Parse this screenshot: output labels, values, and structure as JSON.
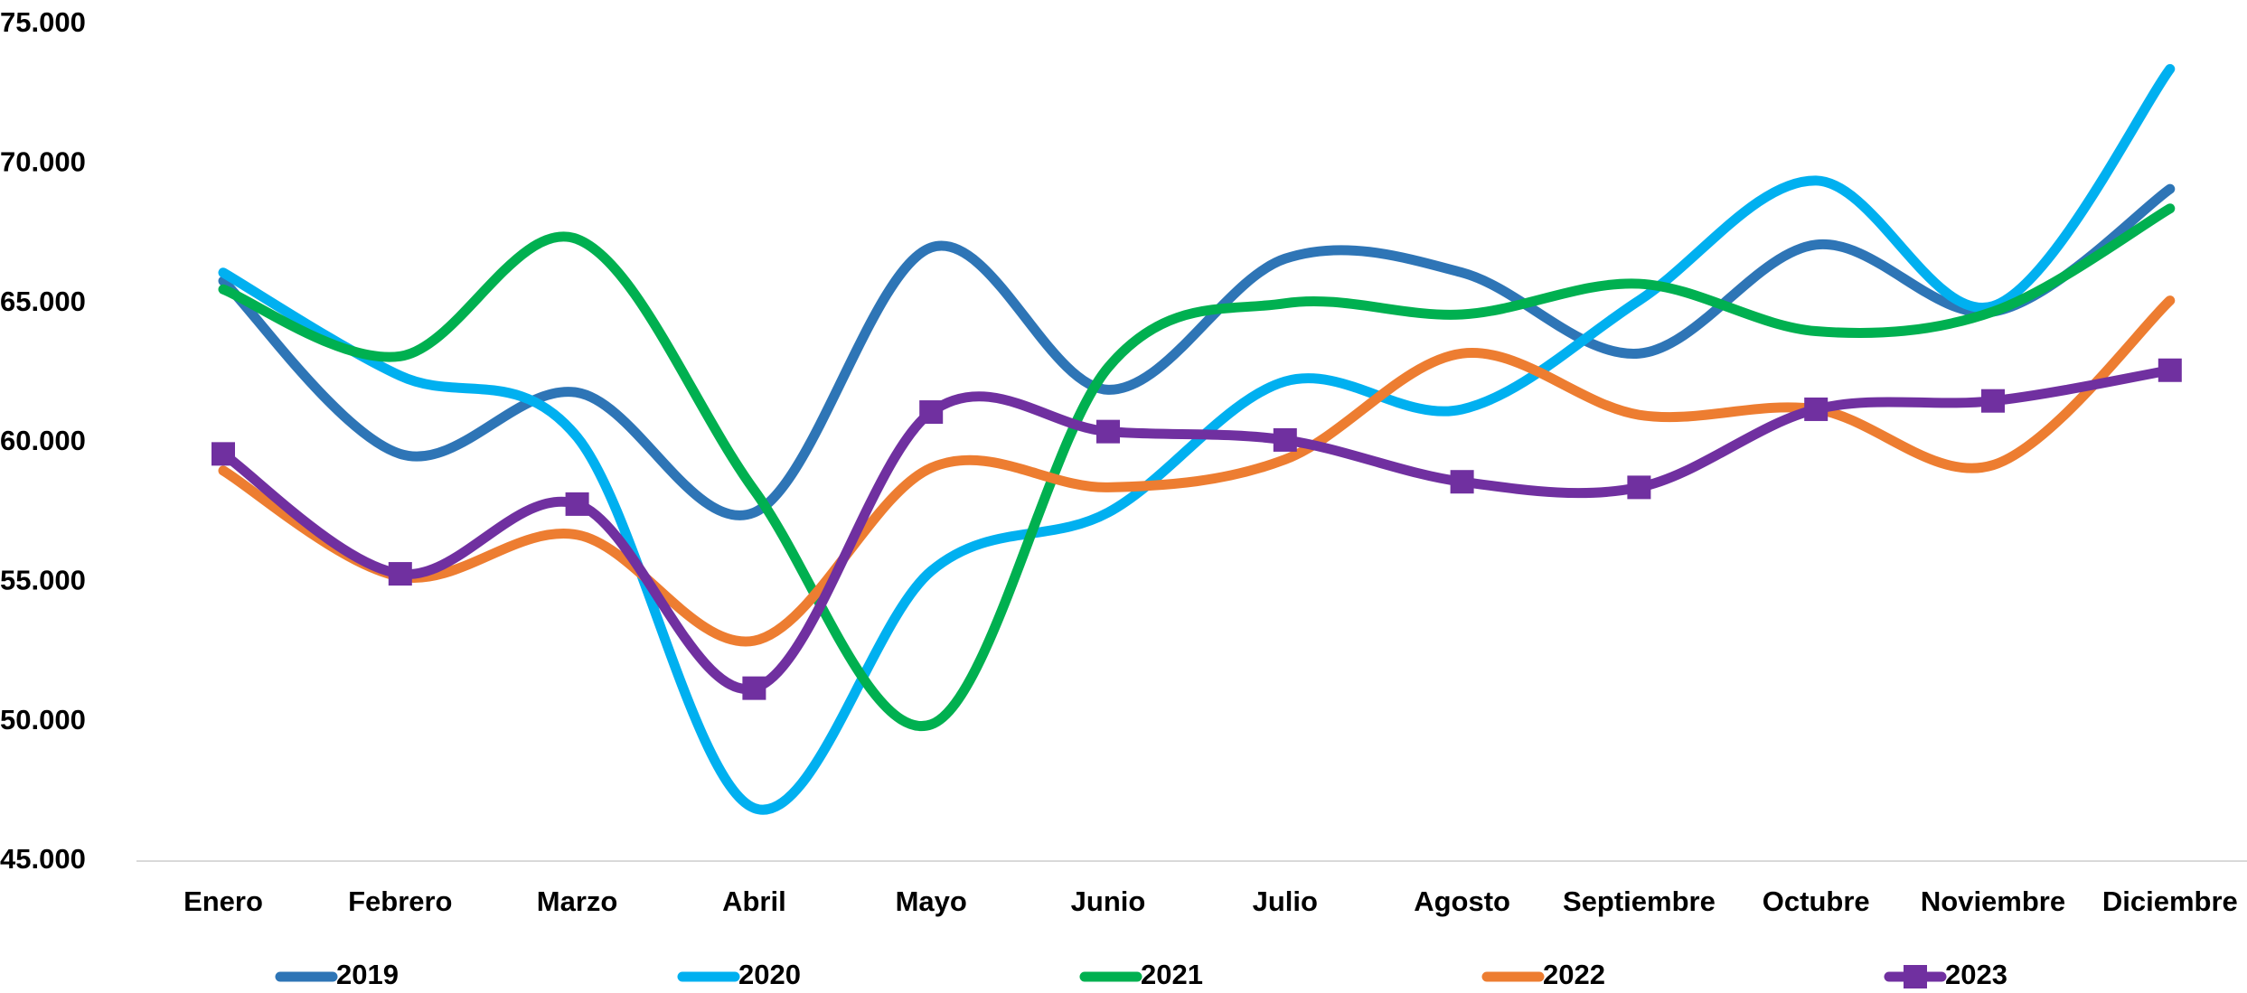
{
  "chart_data": {
    "type": "line",
    "smooth": true,
    "legend": "bottom",
    "categories": [
      "Enero",
      "Febrero",
      "Marzo",
      "Abril",
      "Mayo",
      "Junio",
      "Julio",
      "Agosto",
      "Septiembre",
      "Octubre",
      "Noviembre",
      "Diciembre"
    ],
    "series": [
      {
        "name": "2019",
        "color": "#2e75b6",
        "values": [
          65800,
          59600,
          61800,
          57500,
          67000,
          61900,
          66600,
          66100,
          63200,
          67100,
          64700,
          69100
        ]
      },
      {
        "name": "2020",
        "color": "#00b0f0",
        "values": [
          66100,
          62400,
          60200,
          46900,
          55400,
          57500,
          62200,
          61200,
          65100,
          69400,
          64900,
          73400
        ]
      },
      {
        "name": "2021",
        "color": "#00b050",
        "values": [
          65500,
          63100,
          67300,
          58300,
          49900,
          62700,
          65000,
          64600,
          65700,
          64000,
          64700,
          68400
        ]
      },
      {
        "name": "2022",
        "color": "#ed7d31",
        "values": [
          59000,
          55200,
          56700,
          52900,
          59100,
          58400,
          59400,
          63200,
          61000,
          61200,
          59200,
          65100
        ]
      },
      {
        "name": "2023",
        "color": "#7030a0",
        "marker": "square",
        "values": [
          59600,
          55300,
          57800,
          51200,
          61100,
          60400,
          60100,
          58600,
          58400,
          61200,
          61500,
          62600
        ]
      }
    ],
    "ylim": [
      45000,
      75000
    ],
    "yticks": [
      {
        "value": 45000,
        "label": "45.000"
      },
      {
        "value": 50000,
        "label": "50.000"
      },
      {
        "value": 55000,
        "label": "55.000"
      },
      {
        "value": 60000,
        "label": "60.000"
      },
      {
        "value": 65000,
        "label": "65.000"
      },
      {
        "value": 70000,
        "label": "70.000"
      },
      {
        "value": 75000,
        "label": "75.000"
      }
    ]
  }
}
